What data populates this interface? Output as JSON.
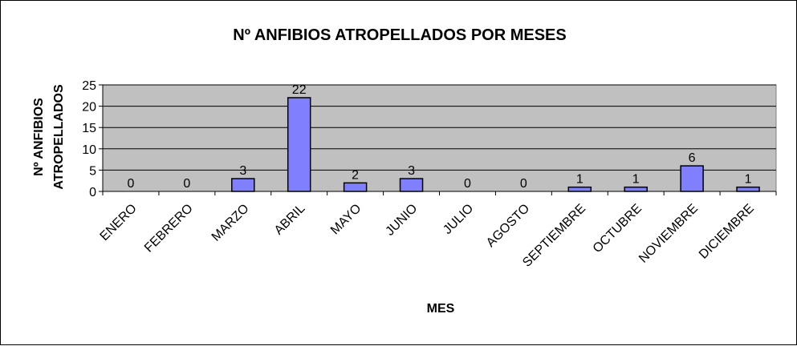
{
  "chart_data": {
    "type": "bar",
    "title": "Nº ANFIBIOS ATROPELLADOS POR MESES",
    "xlabel": "MES",
    "ylabel": [
      "Nº ANFIBIOS",
      "ATROPELLADOS"
    ],
    "categories": [
      "ENERO",
      "FEBRERO",
      "MARZO",
      "ABRIL",
      "MAYO",
      "JUNIO",
      "JULIO",
      "AGOSTO",
      "SEPTIEMBRE",
      "OCTUBRE",
      "NOVIEMBRE",
      "DICIEMBRE"
    ],
    "values": [
      0,
      0,
      3,
      22,
      2,
      3,
      0,
      0,
      1,
      1,
      6,
      1
    ],
    "ylim": [
      0,
      25
    ],
    "yticks": [
      0,
      5,
      10,
      15,
      20,
      25
    ],
    "grid": true,
    "legend": "none",
    "colors": {
      "bar": "#8080ff",
      "plot_background": "#c0c0c0",
      "chart_background": "#ffffff"
    }
  }
}
